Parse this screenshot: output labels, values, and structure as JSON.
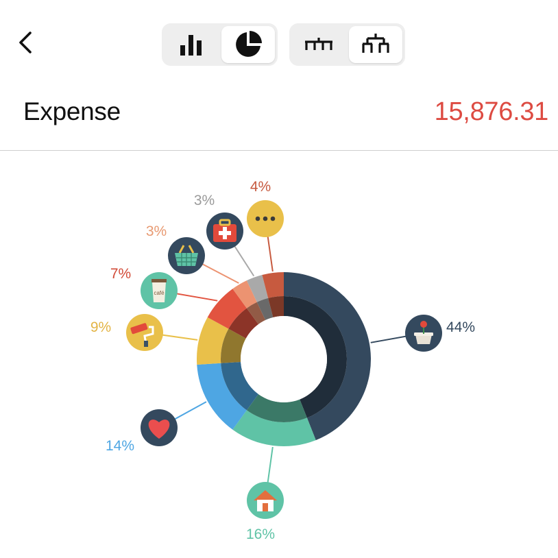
{
  "nav": {
    "back_icon": "chevron-left-icon",
    "chart_toggle": [
      {
        "icon": "bar-chart-icon",
        "active": false
      },
      {
        "icon": "pie-chart-icon",
        "active": true
      }
    ],
    "level_toggle": [
      {
        "icon": "flat-hierarchy-icon",
        "active": false
      },
      {
        "icon": "tree-hierarchy-icon",
        "active": true
      }
    ]
  },
  "header": {
    "title": "Expense",
    "total": "15,876.31",
    "total_color": "#dd4b42"
  },
  "chart_data": {
    "type": "pie",
    "style": "donut",
    "slices": [
      {
        "label": "44%",
        "value": 44,
        "icon": "flower-pot-icon",
        "color": "#34495e",
        "label_color": "#34495e"
      },
      {
        "label": "16%",
        "value": 16,
        "icon": "house-icon",
        "color": "#5fc3a6",
        "label_color": "#5fc3a6"
      },
      {
        "label": "14%",
        "value": 14,
        "icon": "heart-icon",
        "color": "#4ea6e3",
        "label_color": "#4ea6e3"
      },
      {
        "label": "9%",
        "value": 9,
        "icon": "paint-roller-icon",
        "color": "#e9c04a",
        "label_color": "#e3b445"
      },
      {
        "label": "7%",
        "value": 7,
        "icon": "coffee-cup-icon",
        "color": "#e25440",
        "label_color": "#d24b38"
      },
      {
        "label": "3%",
        "value": 3,
        "icon": "shopping-basket-icon",
        "color": "#ec9371",
        "label_color": "#e89a72"
      },
      {
        "label": "3%",
        "value": 3,
        "icon": "first-aid-kit-icon",
        "color": "#a9a9a9",
        "label_color": "#9a9a9a"
      },
      {
        "label": "4%",
        "value": 4,
        "icon": "more-icon",
        "color": "#c75a3f",
        "label_color": "#c65a40"
      }
    ]
  }
}
